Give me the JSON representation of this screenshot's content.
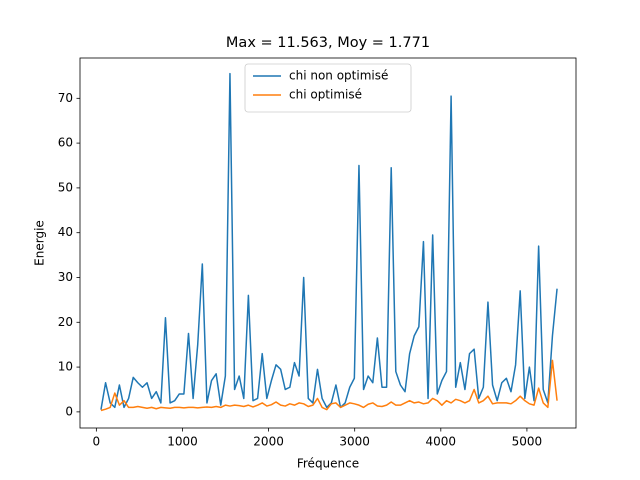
{
  "chart_data": {
    "type": "line",
    "title": "Max = 11.563, Moy = 1.771",
    "xlabel": "Fréquence",
    "ylabel": "Energie",
    "x": [
      53.5,
      107,
      160.5,
      214,
      267.5,
      321,
      374.5,
      428,
      481.5,
      535,
      588.5,
      642,
      695.5,
      749,
      802.5,
      856,
      909.5,
      963,
      1016.5,
      1070,
      1123.5,
      1177,
      1230.5,
      1284,
      1337.5,
      1391,
      1444.5,
      1498,
      1551.5,
      1605,
      1658.5,
      1712,
      1765.5,
      1819,
      1872.5,
      1926,
      1979.5,
      2033,
      2086.5,
      2140,
      2193.5,
      2247,
      2300.5,
      2354,
      2407.5,
      2461,
      2514.5,
      2568,
      2621.5,
      2675,
      2728.5,
      2782,
      2835.5,
      2889,
      2942.5,
      2996,
      3049.5,
      3103,
      3156.5,
      3210,
      3263.5,
      3317,
      3370.5,
      3424,
      3477.5,
      3531,
      3584.5,
      3638,
      3691.5,
      3745,
      3798.5,
      3852,
      3905.5,
      3959,
      4012.5,
      4066,
      4119.5,
      4173,
      4226.5,
      4280,
      4333.5,
      4387,
      4440.5,
      4494,
      4547.5,
      4601,
      4654.5,
      4708,
      4761.5,
      4815,
      4868.5,
      4922,
      4975.5,
      5029,
      5082.5,
      5136,
      5189.5,
      5243,
      5296.5,
      5350
    ],
    "series": [
      {
        "name": "chi non optimisé",
        "color": "#1f77b4",
        "values": [
          0.5,
          6.5,
          2,
          1,
          6,
          1,
          3,
          7.7,
          6.5,
          5.5,
          6.5,
          3,
          4.5,
          2,
          21,
          2,
          2.5,
          4,
          4,
          17.5,
          3,
          15,
          33,
          2,
          7,
          8.5,
          1.5,
          8,
          75.5,
          5,
          8,
          3,
          26,
          2.5,
          3,
          13,
          3,
          7,
          10.5,
          9.5,
          5,
          5.5,
          11,
          8,
          30,
          3,
          2,
          9.5,
          3,
          1,
          2,
          6,
          1,
          2,
          5.5,
          7.5,
          55,
          5,
          8,
          6.5,
          16.5,
          5.5,
          5.5,
          54.5,
          9,
          6,
          4.5,
          13,
          17,
          19,
          38,
          3,
          39.5,
          4,
          7,
          9,
          70.5,
          5.5,
          11,
          5,
          13,
          14,
          3,
          5.5,
          24.5,
          6,
          2.5,
          6.5,
          7.5,
          4.5,
          10.5,
          27,
          3,
          10,
          2.5,
          37,
          5,
          2,
          17,
          27.5
        ]
      },
      {
        "name": "chi optimisé",
        "color": "#ff7f0e",
        "values": [
          0.3,
          0.6,
          1,
          4.2,
          1.5,
          2.5,
          1,
          1,
          1.2,
          1,
          0.8,
          1,
          0.7,
          1,
          0.9,
          0.8,
          1,
          1,
          0.9,
          1,
          1,
          0.9,
          1,
          1.1,
          1,
          1.2,
          1,
          1.5,
          1.3,
          1.5,
          1.4,
          1.2,
          1.5,
          1.1,
          1.5,
          2,
          1.3,
          1.6,
          2.2,
          1.5,
          1.3,
          1.8,
          1.5,
          2,
          1.8,
          1.2,
          1.5,
          3,
          1,
          0.5,
          1.8,
          2,
          1,
          1.5,
          2,
          1.8,
          1.5,
          1,
          1.7,
          2,
          1.3,
          1.2,
          1.5,
          2.2,
          1.5,
          1.5,
          2,
          2.5,
          2,
          2.2,
          1.8,
          2,
          3,
          2.5,
          1.5,
          2.5,
          2,
          2.8,
          2.5,
          2,
          2.5,
          5,
          2,
          2.5,
          3.5,
          1.8,
          2,
          2,
          2,
          1.8,
          2.5,
          3.5,
          2.5,
          1.8,
          1.5,
          5.3,
          2,
          1,
          11.5,
          2.5
        ]
      }
    ],
    "xlim": [
      -190,
      5570
    ],
    "ylim": [
      -3.6,
      79
    ],
    "xticks": [
      0,
      1000,
      2000,
      3000,
      4000,
      5000
    ],
    "yticks": [
      0,
      10,
      20,
      30,
      40,
      50,
      60,
      70
    ],
    "grid": false,
    "legend": "upper center"
  }
}
